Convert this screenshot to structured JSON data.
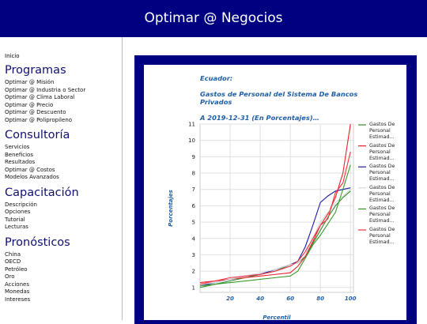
{
  "header": {
    "title": "Optimar @ Negocios"
  },
  "sidebar": {
    "top": "Inicio",
    "sections": [
      {
        "heading": "Programas",
        "items": [
          "Optimar @ Misión",
          "Optimar @ Industria o Sector",
          "Optimar @ Clima Laboral",
          "Optimar @ Precio",
          "Optimar @ Descuento",
          "Optimar @ Polipropileno"
        ]
      },
      {
        "heading": "Consultoría",
        "items": [
          "Servicios",
          "Beneficios",
          "Resultados",
          "Optimar @ Costos",
          "Modelos Avanzados"
        ]
      },
      {
        "heading": "Capacitación",
        "items": [
          "Descripción",
          "Opciones",
          "Tutorial",
          "Lecturas"
        ]
      },
      {
        "heading": "Pronósticos",
        "items": [
          "China",
          "OECD",
          "Petróleo",
          "Oro",
          "Acciones",
          "Monedas",
          "Intereses"
        ]
      }
    ]
  },
  "chart_data": {
    "type": "line",
    "title_lines": [
      "Ecuador:",
      "Gastos de Personal del Sistema De Bancos Privados",
      "A 2019-12-31 (En Porcentajes)…"
    ],
    "x_label": "Percentil",
    "y_label": "Porcentajes",
    "x": [
      0,
      10,
      20,
      30,
      40,
      50,
      60,
      65,
      70,
      75,
      80,
      85,
      90,
      95,
      100
    ],
    "series": [
      {
        "name": "Gastos De Personal Estimad…",
        "color": "#2e8b2e",
        "values": [
          1.0,
          1.2,
          1.4,
          1.6,
          1.8,
          2.0,
          2.4,
          2.5,
          2.9,
          3.7,
          4.5,
          5.3,
          6.0,
          6.5,
          6.9
        ]
      },
      {
        "name": "Gastos De Personal Estimad…",
        "color": "#e8202a",
        "values": [
          1.3,
          1.4,
          1.5,
          1.6,
          1.7,
          1.8,
          1.9,
          2.3,
          2.9,
          3.8,
          4.8,
          5.5,
          6.5,
          8.0,
          11.0
        ]
      },
      {
        "name": "Gastos De Personal Estimad…",
        "color": "#1c1c9c",
        "values": [
          1.1,
          1.3,
          1.5,
          1.7,
          1.8,
          2.1,
          2.4,
          2.6,
          3.5,
          4.8,
          6.2,
          6.6,
          6.9,
          7.0,
          7.1
        ]
      },
      {
        "name": "Gastos De Personal Estimad…",
        "color": "#d8d8d8",
        "values": [
          1.2,
          1.3,
          1.5,
          1.7,
          1.9,
          2.1,
          2.4,
          2.5,
          3.0,
          4.0,
          5.0,
          5.6,
          6.2,
          6.6,
          7.0
        ]
      },
      {
        "name": "Gastos De Personal Estimad…",
        "color": "#3a9a2a",
        "values": [
          1.1,
          1.2,
          1.3,
          1.4,
          1.5,
          1.6,
          1.7,
          2.0,
          2.8,
          3.6,
          4.2,
          4.9,
          5.6,
          7.0,
          8.5
        ]
      },
      {
        "name": "Gastos De Personal Estimad…",
        "color": "#f03040",
        "values": [
          1.2,
          1.4,
          1.6,
          1.7,
          1.8,
          2.0,
          2.3,
          2.6,
          3.2,
          4.0,
          4.8,
          5.2,
          6.8,
          7.4,
          9.3
        ]
      }
    ],
    "xlim": [
      0,
      102
    ],
    "xticks": [
      20,
      40,
      60,
      80,
      100
    ],
    "ylim": [
      0.7,
      11
    ],
    "yticks": [
      1,
      2,
      3,
      4,
      5,
      6,
      7,
      8,
      9,
      10,
      11
    ],
    "grid": true,
    "legend": "right"
  }
}
